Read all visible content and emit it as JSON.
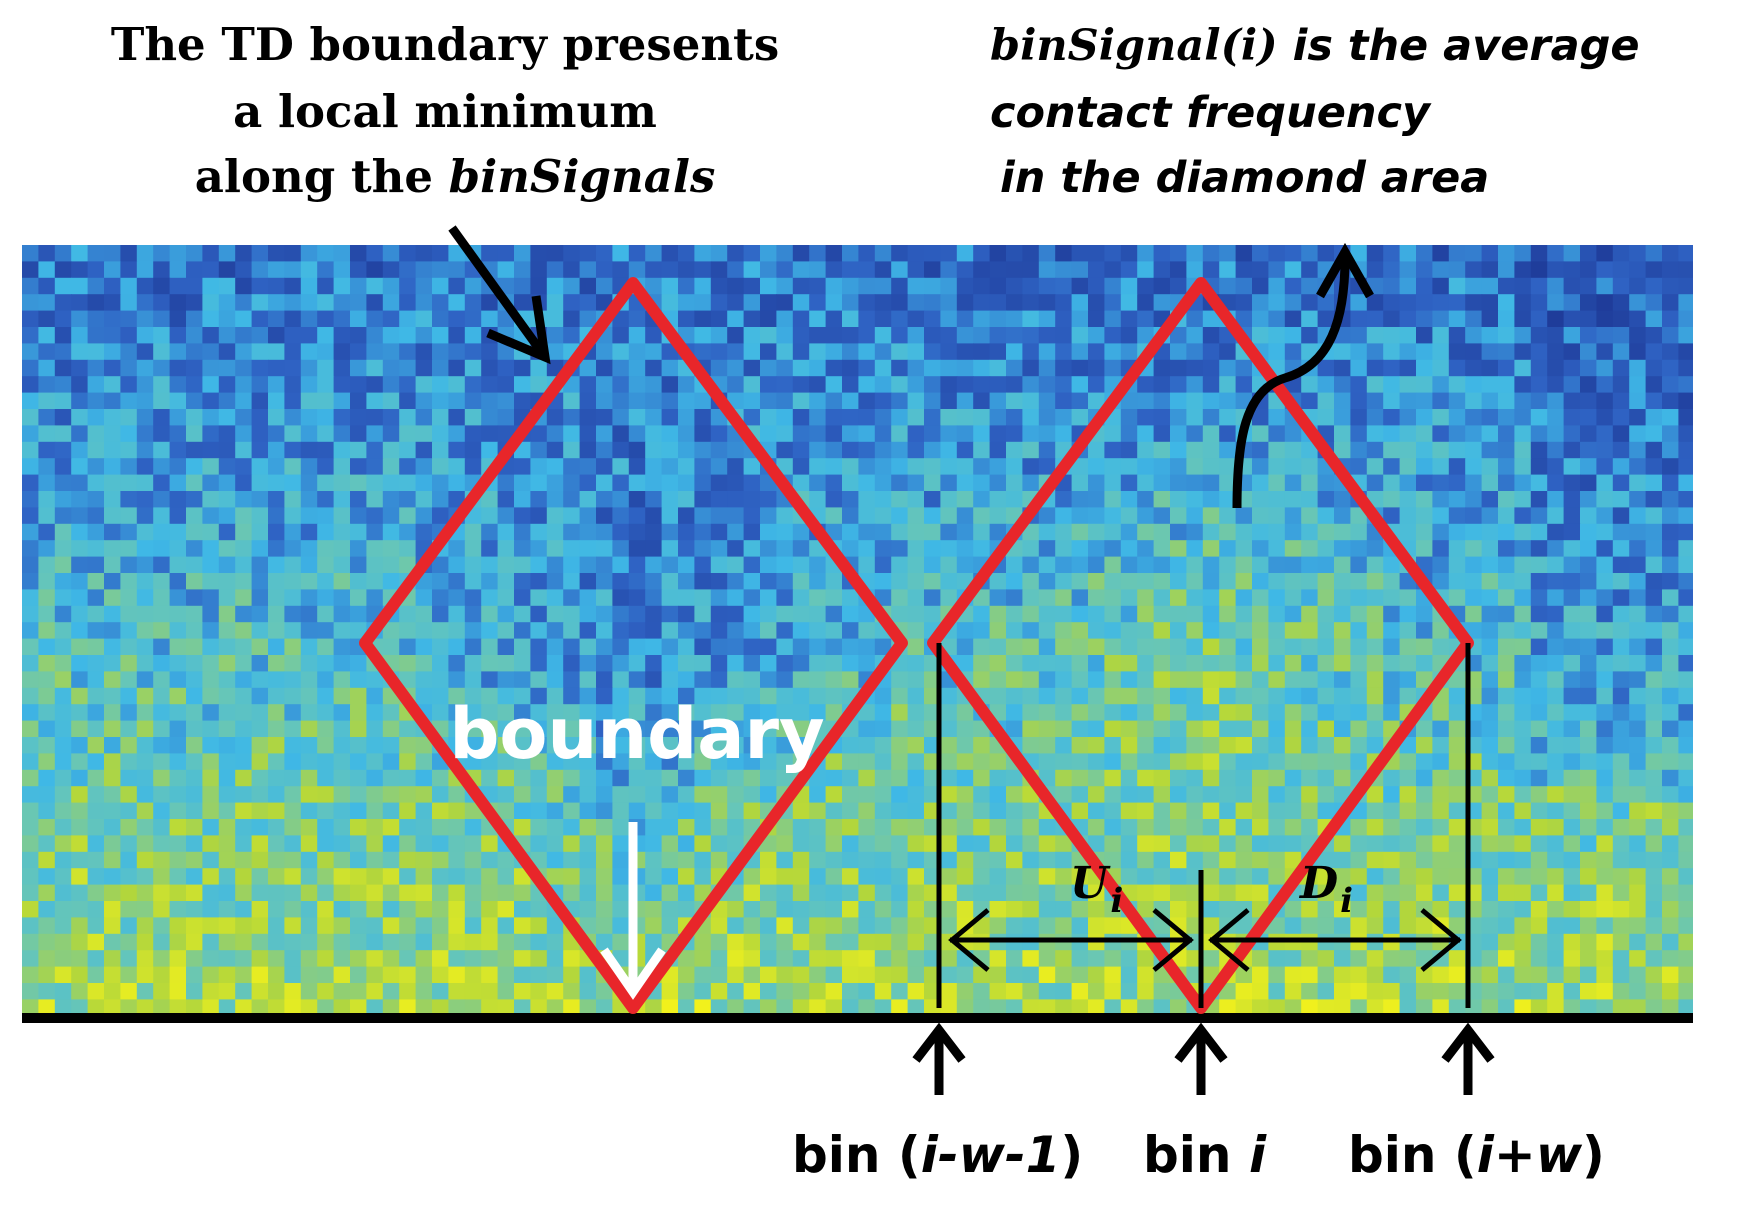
{
  "left_caption": {
    "line1": "The TD boundary presents",
    "line2": "a local minimum",
    "line3_prefix": "along the ",
    "line3_italic": "binSignals"
  },
  "right_caption": {
    "line1_italic": "binSignal(i)",
    "line1_rest": " is the average",
    "line2": "contact frequency",
    "line3": "in the diamond area"
  },
  "boundary_label": "boundary",
  "u_label": {
    "main": "U",
    "sub": "i"
  },
  "d_label": {
    "main": "D",
    "sub": "i"
  },
  "bin_labels": {
    "left_prefix": "bin (",
    "left_italic": "i-w-1",
    "left_suffix": ")",
    "center_prefix": "bin ",
    "center_italic": "i",
    "right_prefix": "bin (",
    "right_italic": "i+w",
    "right_suffix": ")"
  },
  "colors": {
    "diamond": "#e8262a",
    "arrow": "#000000",
    "boundary_text": "#ffffff",
    "heatmap_low": "#2b4fa8",
    "heatmap_mid": "#3fc2e0",
    "heatmap_high": "#f0f020"
  }
}
